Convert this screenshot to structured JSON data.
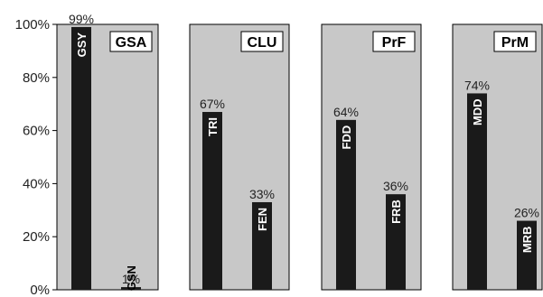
{
  "chart_data": {
    "type": "bar",
    "ylim": [
      0,
      100
    ],
    "yticks": [
      0,
      20,
      40,
      60,
      80,
      100
    ],
    "ytick_labels": [
      "0%",
      "20%",
      "40%",
      "60%",
      "80%",
      "100%"
    ],
    "grid": false,
    "colors": {
      "panel_fill": "#c8c8c8",
      "bar_fill": "#1a1a1a",
      "label_box": "#ffffff"
    },
    "groups": [
      {
        "name": "GSA",
        "bars": [
          {
            "label": "GSY",
            "value": 99,
            "value_label": "99%"
          },
          {
            "label": "GSN",
            "value": 1,
            "value_label": "1%"
          }
        ]
      },
      {
        "name": "CLU",
        "bars": [
          {
            "label": "TRI",
            "value": 67,
            "value_label": "67%"
          },
          {
            "label": "FEN",
            "value": 33,
            "value_label": "33%"
          }
        ]
      },
      {
        "name": "PrF",
        "bars": [
          {
            "label": "FDD",
            "value": 64,
            "value_label": "64%"
          },
          {
            "label": "FRB",
            "value": 36,
            "value_label": "36%"
          }
        ]
      },
      {
        "name": "PrM",
        "bars": [
          {
            "label": "MDD",
            "value": 74,
            "value_label": "74%"
          },
          {
            "label": "MRB",
            "value": 26,
            "value_label": "26%"
          }
        ]
      }
    ]
  }
}
